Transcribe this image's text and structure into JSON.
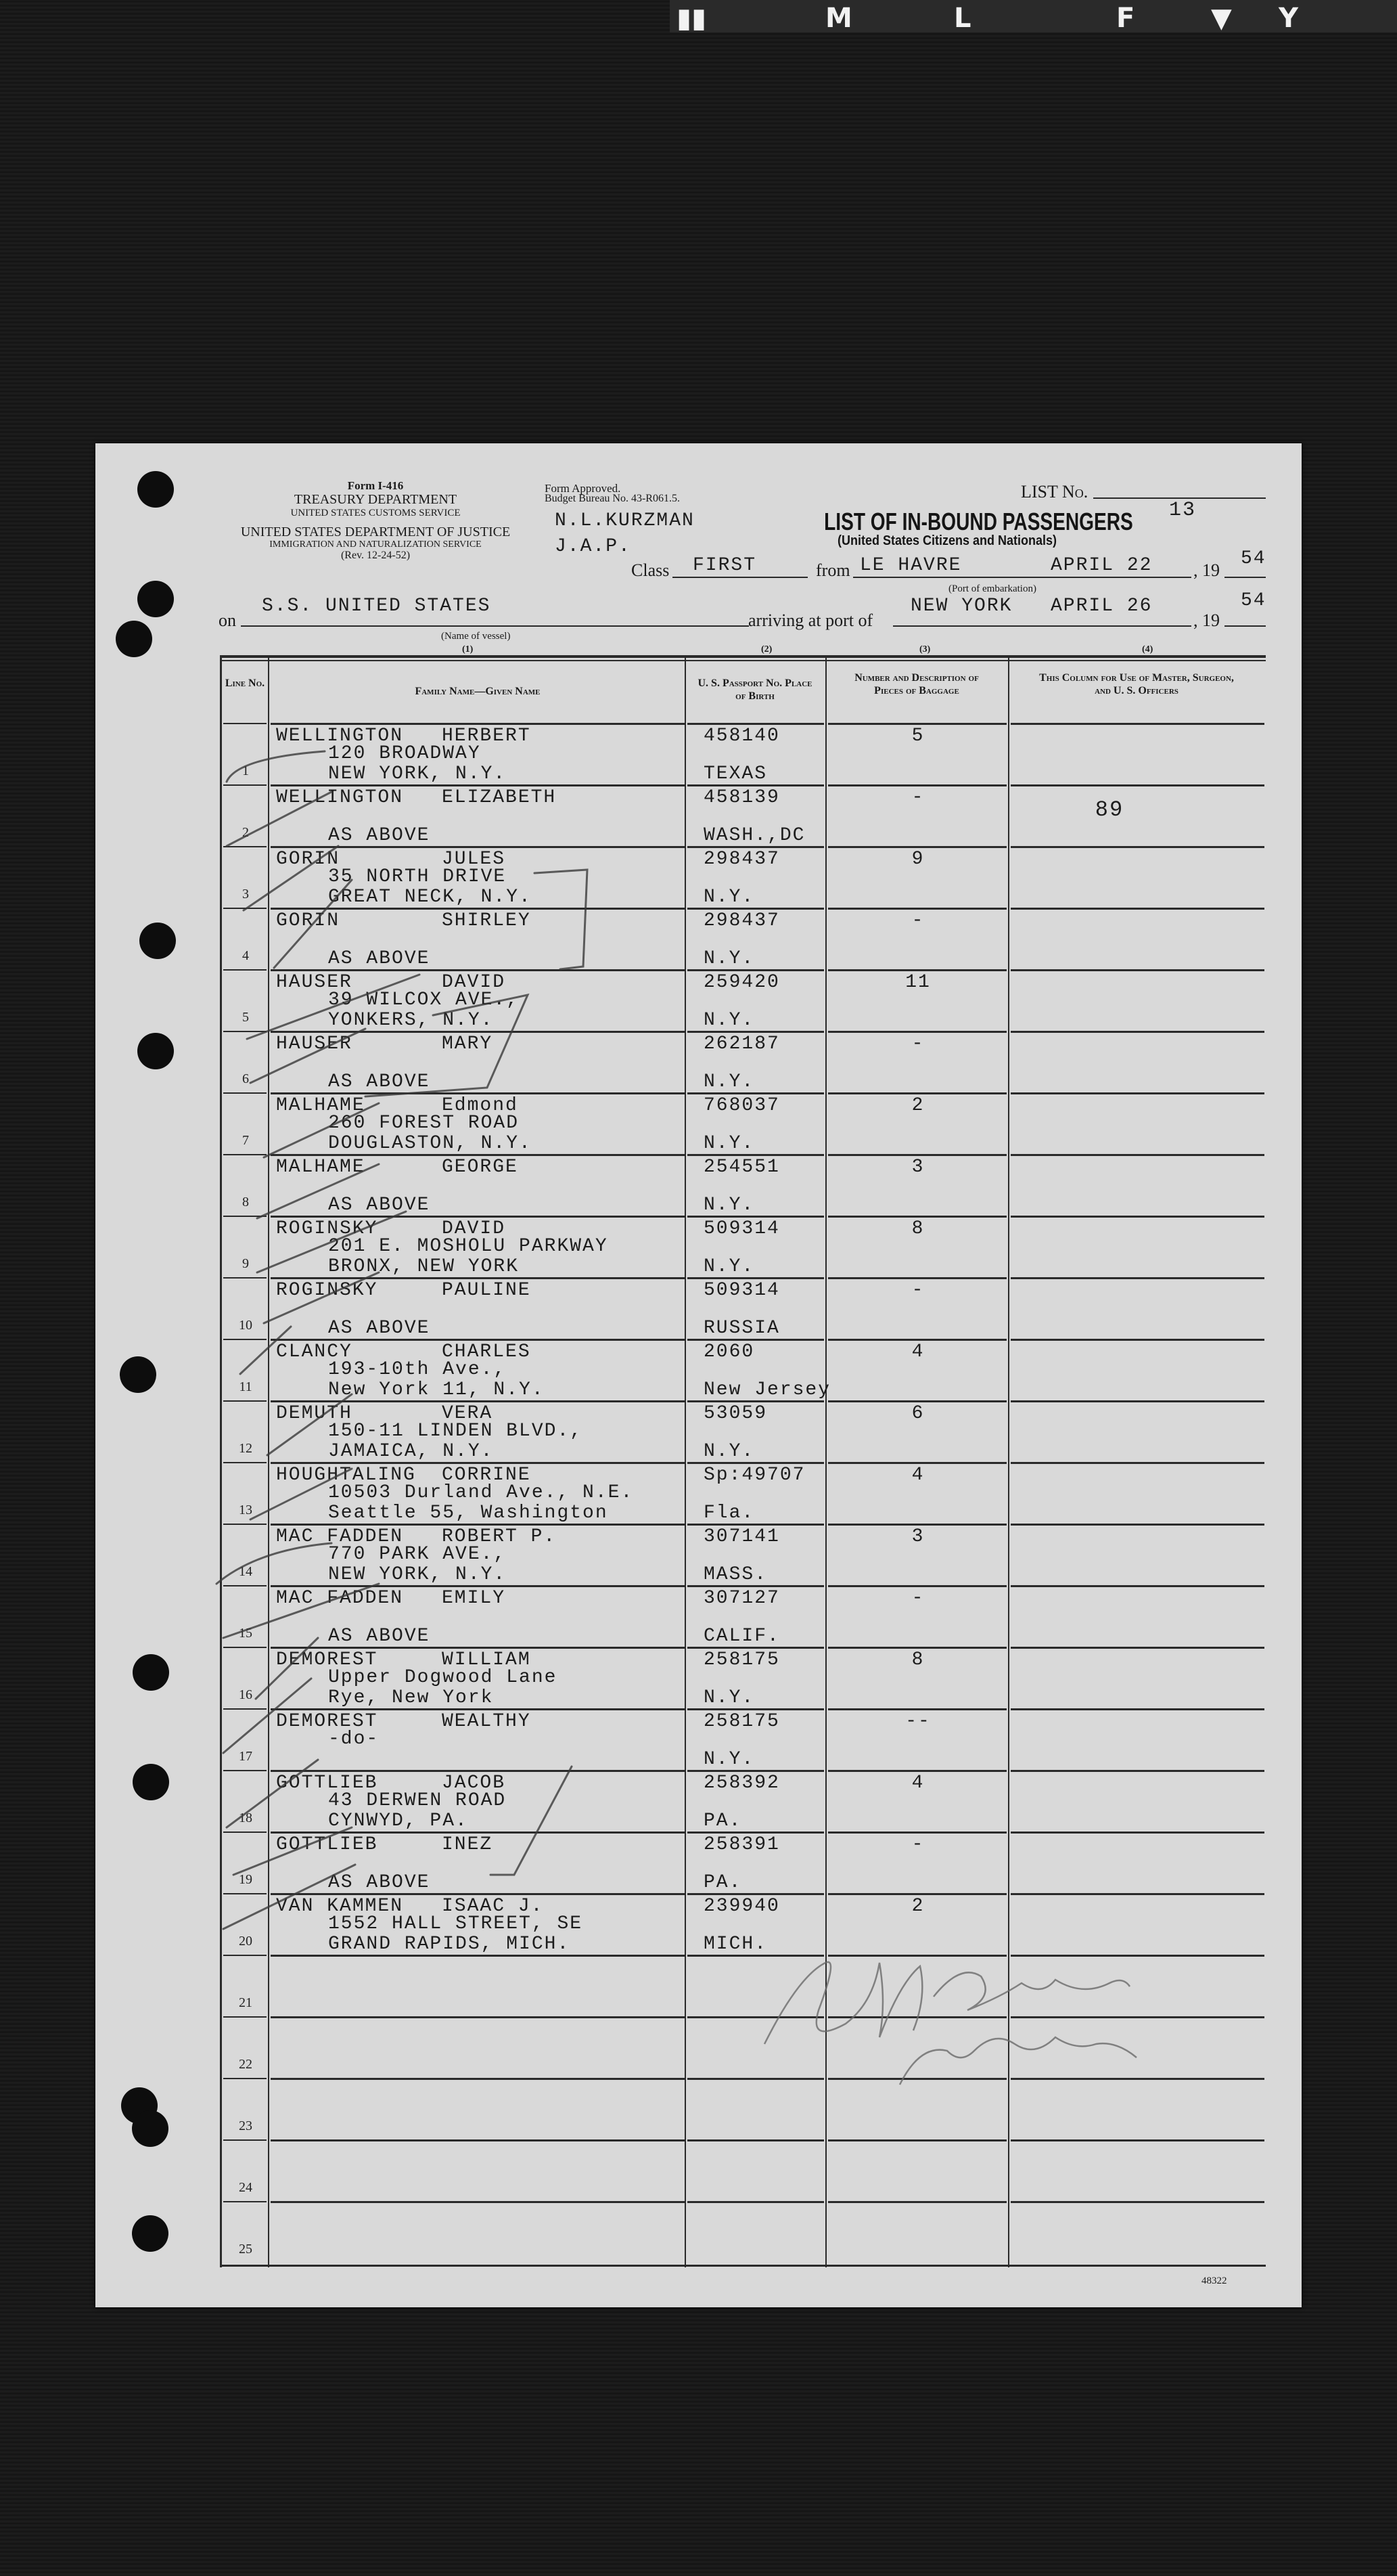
{
  "film_marks": [
    "▮▮",
    "M",
    "L",
    "F",
    "▼",
    "Y"
  ],
  "form": {
    "form_no": "Form I-416",
    "dept1": "TREASURY DEPARTMENT",
    "dept1_sub": "UNITED STATES CUSTOMS SERVICE",
    "dept2": "UNITED STATES DEPARTMENT OF JUSTICE",
    "dept2_sub": "IMMIGRATION AND NATURALIZATION SERVICE",
    "rev": "(Rev. 12-24-52)",
    "approved": "Form Approved.",
    "budget": "Budget Bureau No. 43-R061.5.",
    "officer1": "N.L.KURZMAN",
    "officer2": "J.A.P.",
    "title": "LIST OF IN-BOUND PASSENGERS",
    "subtitle": "(United States Citizens and Nationals)",
    "list_no_label": "LIST No.",
    "list_no": "13",
    "class_label": "Class",
    "class_value": "FIRST",
    "from_label": "from",
    "from_port": "LE HAVRE",
    "from_date": "APRIL 22",
    "year_prefix": ", 19",
    "from_year": "54",
    "port_embark_caption": "(Port of embarkation)",
    "on_label": "on",
    "vessel": "S.S. UNITED STATES",
    "vessel_caption": "(Name of vessel)",
    "arriving_label": "arriving at port of",
    "arrival_port": "NEW YORK",
    "arrival_date": "APRIL 26",
    "arrival_year": "54",
    "col_numbers": [
      "(1)",
      "(2)",
      "(3)",
      "(4)"
    ],
    "form_code": "48322"
  },
  "table": {
    "headers": {
      "line": "Line No.",
      "name": "Family Name—Given Name",
      "passport": "U. S. Passport No. Place of Birth",
      "baggage": "Number and Description of Pieces of Baggage",
      "officers": "This Column for Use of Master, Surgeon, and U. S. Officers"
    },
    "rows": [
      {
        "line": "1",
        "family": "WELLINGTON",
        "given": "HERBERT",
        "addr": [
          "120 BROADWAY",
          "NEW YORK, N.Y."
        ],
        "passport": "458140",
        "birth": "TEXAS",
        "baggage": "5",
        "officer": ""
      },
      {
        "line": "2",
        "family": "WELLINGTON",
        "given": "ELIZABETH",
        "addr": [
          "",
          "AS ABOVE"
        ],
        "passport": "458139",
        "birth": "WASH.,DC",
        "baggage": "-",
        "officer": "89"
      },
      {
        "line": "3",
        "family": "GORIN",
        "given": "JULES",
        "addr": [
          "35 NORTH DRIVE",
          "GREAT NECK, N.Y."
        ],
        "passport": "298437",
        "birth": "N.Y.",
        "baggage": "9",
        "officer": ""
      },
      {
        "line": "4",
        "family": "GORIN",
        "given": "SHIRLEY",
        "addr": [
          "",
          "AS ABOVE"
        ],
        "passport": "298437",
        "birth": "N.Y.",
        "baggage": "-",
        "officer": ""
      },
      {
        "line": "5",
        "family": "HAUSER",
        "given": "DAVID",
        "addr": [
          "39 WILCOX AVE.,",
          "YONKERS, N.Y."
        ],
        "passport": "259420",
        "birth": "N.Y.",
        "baggage": "11",
        "officer": ""
      },
      {
        "line": "6",
        "family": "HAUSER",
        "given": "MARY",
        "addr": [
          "",
          "AS ABOVE"
        ],
        "passport": "262187",
        "birth": "N.Y.",
        "baggage": "-",
        "officer": ""
      },
      {
        "line": "7",
        "family": "MALHAME",
        "given": "Edmond",
        "addr": [
          "260 FOREST ROAD",
          "DOUGLASTON, N.Y."
        ],
        "passport": "768037",
        "birth": "N.Y.",
        "baggage": "2",
        "officer": ""
      },
      {
        "line": "8",
        "family": "MALHAME",
        "given": "GEORGE",
        "addr": [
          "",
          "AS ABOVE"
        ],
        "passport": "254551",
        "birth": "N.Y.",
        "baggage": "3",
        "officer": ""
      },
      {
        "line": "9",
        "family": "ROGINSKY",
        "given": "DAVID",
        "addr": [
          "201 E. MOSHOLU PARKWAY",
          "BRONX, NEW YORK"
        ],
        "passport": "509314",
        "birth": "N.Y.",
        "baggage": "8",
        "officer": ""
      },
      {
        "line": "10",
        "family": "ROGINSKY",
        "given": "PAULINE",
        "addr": [
          "",
          "AS ABOVE"
        ],
        "passport": "509314",
        "birth": "RUSSIA",
        "baggage": "-",
        "officer": ""
      },
      {
        "line": "11",
        "family": "CLANCY",
        "given": "CHARLES",
        "addr": [
          "193-10th Ave.,",
          "New York 11, N.Y."
        ],
        "passport": "2060",
        "birth": "New Jersey",
        "baggage": "4",
        "officer": ""
      },
      {
        "line": "12",
        "family": "DEMUTH",
        "given": "VERA",
        "addr": [
          "150-11 LINDEN BLVD.,",
          "JAMAICA, N.Y."
        ],
        "passport": "53059",
        "birth": "N.Y.",
        "baggage": "6",
        "officer": ""
      },
      {
        "line": "13",
        "family": "HOUGHTALING",
        "given": "CORRINE",
        "addr": [
          "10503 Durland Ave., N.E.",
          "Seattle 55, Washington"
        ],
        "passport": "Sp:49707",
        "birth": "Fla.",
        "baggage": "4",
        "officer": ""
      },
      {
        "line": "14",
        "family": "MAC FADDEN",
        "given": "ROBERT P.",
        "addr": [
          "770 PARK AVE.,",
          "NEW YORK, N.Y."
        ],
        "passport": "307141",
        "birth": "MASS.",
        "baggage": "3",
        "officer": ""
      },
      {
        "line": "15",
        "family": "MAC FADDEN",
        "given": "EMILY",
        "addr": [
          "",
          "AS ABOVE"
        ],
        "passport": "307127",
        "birth": "CALIF.",
        "baggage": "-",
        "officer": ""
      },
      {
        "line": "16",
        "family": "DEMOREST",
        "given": "WILLIAM",
        "addr": [
          "Upper Dogwood Lane",
          "Rye, New York"
        ],
        "passport": "258175",
        "birth": "N.Y.",
        "baggage": "8",
        "officer": ""
      },
      {
        "line": "17",
        "family": "DEMOREST",
        "given": "WEALTHY",
        "addr": [
          "-do-",
          ""
        ],
        "passport": "258175",
        "birth": "N.Y.",
        "baggage": "--",
        "officer": ""
      },
      {
        "line": "18",
        "family": "GOTTLIEB",
        "given": "JACOB",
        "addr": [
          "43 DERWEN ROAD",
          "CYNWYD, PA."
        ],
        "passport": "258392",
        "birth": "PA.",
        "baggage": "4",
        "officer": ""
      },
      {
        "line": "19",
        "family": "GOTTLIEB",
        "given": "INEZ",
        "addr": [
          "",
          "AS ABOVE"
        ],
        "passport": "258391",
        "birth": "PA.",
        "baggage": "-",
        "officer": ""
      },
      {
        "line": "20",
        "family": "VAN KAMMEN",
        "given": "ISAAC J.",
        "addr": [
          "1552 HALL STREET, SE",
          "GRAND RAPIDS, MICH."
        ],
        "passport": "239940",
        "birth": "MICH.",
        "baggage": "2",
        "officer": ""
      },
      {
        "line": "21",
        "family": "",
        "given": "",
        "addr": [
          "",
          ""
        ],
        "passport": "",
        "birth": "",
        "baggage": "",
        "officer": ""
      },
      {
        "line": "22",
        "family": "",
        "given": "",
        "addr": [
          "",
          ""
        ],
        "passport": "",
        "birth": "",
        "baggage": "",
        "officer": ""
      },
      {
        "line": "23",
        "family": "",
        "given": "",
        "addr": [
          "",
          ""
        ],
        "passport": "",
        "birth": "",
        "baggage": "",
        "officer": ""
      },
      {
        "line": "24",
        "family": "",
        "given": "",
        "addr": [
          "",
          ""
        ],
        "passport": "",
        "birth": "",
        "baggage": "",
        "officer": ""
      },
      {
        "line": "25",
        "family": "",
        "given": "",
        "addr": [
          "",
          ""
        ],
        "passport": "",
        "birth": "",
        "baggage": "",
        "officer": ""
      }
    ]
  },
  "colors": {
    "paper": "#d9d9d9",
    "ink": "#1c1c1c",
    "background": "#151515"
  }
}
